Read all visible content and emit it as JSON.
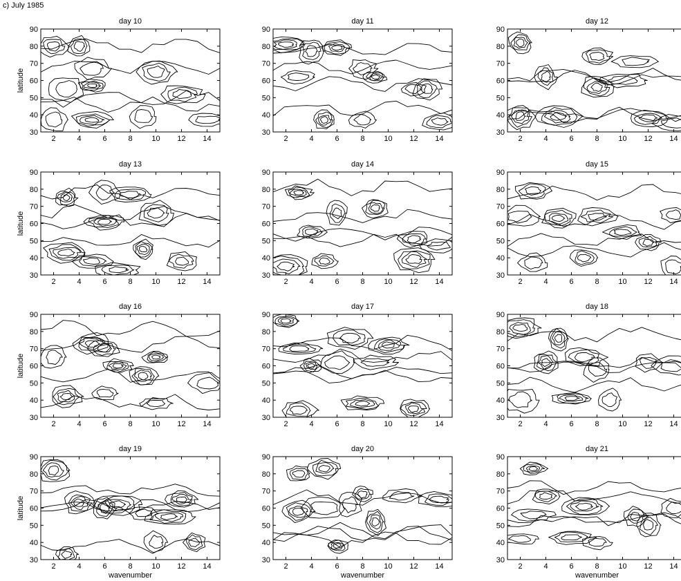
{
  "figure_label": "c) July 1985",
  "chart_data": {
    "type": "contour",
    "grid_layout": "4 rows x 3 columns",
    "shared_xlabel": "wavenumber",
    "shared_ylabel": "latitude",
    "xlim": [
      1,
      15
    ],
    "ylim": [
      30,
      90
    ],
    "x_ticks": [
      2,
      4,
      6,
      8,
      10,
      12,
      14
    ],
    "y_ticks": [
      30,
      40,
      50,
      60,
      70,
      80,
      90
    ],
    "panels": [
      {
        "title": "day 10",
        "centers": [
          [
            2,
            80
          ],
          [
            4,
            80
          ],
          [
            5,
            67
          ],
          [
            10,
            65
          ],
          [
            3,
            55
          ],
          [
            5,
            57
          ],
          [
            9,
            39
          ],
          [
            5,
            37
          ],
          [
            14,
            37
          ],
          [
            2,
            37
          ],
          [
            12,
            52
          ]
        ]
      },
      {
        "title": "day 11",
        "centers": [
          [
            2,
            81
          ],
          [
            4,
            77
          ],
          [
            6,
            79
          ],
          [
            8,
            67
          ],
          [
            9,
            62
          ],
          [
            13,
            55
          ],
          [
            12,
            55
          ],
          [
            5,
            37
          ],
          [
            8,
            37
          ],
          [
            14,
            36
          ],
          [
            3,
            62
          ]
        ]
      },
      {
        "title": "day 12",
        "centers": [
          [
            2,
            82
          ],
          [
            4,
            62
          ],
          [
            8,
            74
          ],
          [
            11,
            71
          ],
          [
            10,
            60
          ],
          [
            5,
            39
          ],
          [
            12,
            38
          ],
          [
            14,
            35
          ],
          [
            2,
            39
          ],
          [
            8,
            56
          ]
        ]
      },
      {
        "title": "day 13",
        "centers": [
          [
            3,
            75
          ],
          [
            6,
            78
          ],
          [
            8,
            77
          ],
          [
            10,
            66
          ],
          [
            6,
            61
          ],
          [
            5,
            38
          ],
          [
            12,
            38
          ],
          [
            9,
            45
          ],
          [
            3,
            43
          ],
          [
            7,
            33
          ]
        ]
      },
      {
        "title": "day 14",
        "centers": [
          [
            3,
            78
          ],
          [
            4,
            55
          ],
          [
            6,
            66
          ],
          [
            9,
            69
          ],
          [
            12,
            51
          ],
          [
            2,
            35
          ],
          [
            12,
            39
          ],
          [
            14,
            47
          ],
          [
            5,
            38
          ]
        ]
      },
      {
        "title": "day 15",
        "centers": [
          [
            3,
            79
          ],
          [
            2,
            64
          ],
          [
            5,
            63
          ],
          [
            8,
            64
          ],
          [
            10,
            55
          ],
          [
            12,
            49
          ],
          [
            14,
            65
          ],
          [
            3,
            37
          ],
          [
            7,
            40
          ],
          [
            14,
            35
          ]
        ]
      },
      {
        "title": "day 16",
        "centers": [
          [
            2,
            65
          ],
          [
            5,
            73
          ],
          [
            6,
            70
          ],
          [
            7,
            60
          ],
          [
            10,
            65
          ],
          [
            3,
            42
          ],
          [
            6,
            44
          ],
          [
            9,
            54
          ],
          [
            10,
            38
          ],
          [
            14,
            50
          ]
        ]
      },
      {
        "title": "day 17",
        "centers": [
          [
            2,
            86
          ],
          [
            3,
            34
          ],
          [
            4,
            60
          ],
          [
            6,
            62
          ],
          [
            7,
            76
          ],
          [
            9,
            62
          ],
          [
            10,
            72
          ],
          [
            3,
            70
          ],
          [
            8,
            38
          ],
          [
            12,
            35
          ]
        ]
      },
      {
        "title": "day 18",
        "centers": [
          [
            2,
            82
          ],
          [
            4,
            62
          ],
          [
            5,
            76
          ],
          [
            7,
            65
          ],
          [
            8,
            58
          ],
          [
            12,
            62
          ],
          [
            14,
            60
          ],
          [
            2,
            40
          ],
          [
            6,
            41
          ],
          [
            9,
            40
          ]
        ]
      },
      {
        "title": "day 19",
        "centers": [
          [
            2,
            82
          ],
          [
            4,
            63
          ],
          [
            6,
            60
          ],
          [
            7,
            62
          ],
          [
            9,
            57
          ],
          [
            11,
            55
          ],
          [
            12,
            65
          ],
          [
            3,
            33
          ],
          [
            10,
            40
          ],
          [
            13,
            40
          ]
        ]
      },
      {
        "title": "day 20",
        "centers": [
          [
            3,
            80
          ],
          [
            5,
            83
          ],
          [
            3,
            58
          ],
          [
            5,
            60
          ],
          [
            7,
            62
          ],
          [
            8,
            68
          ],
          [
            6,
            38
          ],
          [
            9,
            52
          ],
          [
            11,
            67
          ],
          [
            14,
            65
          ]
        ]
      },
      {
        "title": "day 21",
        "centers": [
          [
            3,
            83
          ],
          [
            4,
            67
          ],
          [
            3,
            56
          ],
          [
            7,
            61
          ],
          [
            6,
            43
          ],
          [
            8,
            40
          ],
          [
            12,
            50
          ],
          [
            11,
            55
          ],
          [
            14,
            60
          ],
          [
            2,
            42
          ]
        ]
      }
    ]
  }
}
